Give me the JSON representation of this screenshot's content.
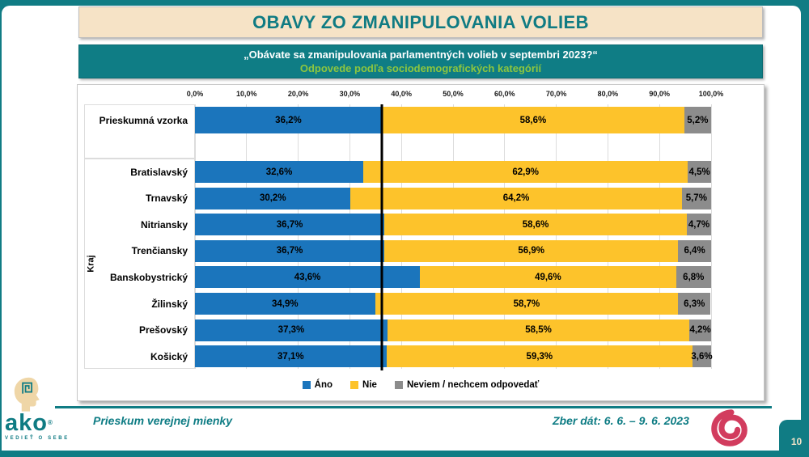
{
  "title": "OBAVY ZO ZMANIPULOVANIA VOLIEB",
  "subtitle": {
    "line1": "„Obávate sa zmanipulovania parlamentných volieb v septembri 2023?“",
    "line2": "Odpovede podľa sociodemografických kategórií"
  },
  "chart_data": {
    "type": "bar",
    "orientation": "horizontal",
    "stacked": true,
    "value_format": "percent-comma",
    "group_label": "Kraj",
    "categories": [
      "Prieskumná vzorka",
      "Bratislavský",
      "Trnavský",
      "Nitriansky",
      "Trenčiansky",
      "Banskobystrický",
      "Žilinský",
      "Prešovský",
      "Košický"
    ],
    "series": [
      {
        "name": "Áno",
        "color": "#1B75BC",
        "values": [
          36.2,
          32.6,
          30.2,
          36.7,
          36.7,
          43.6,
          34.9,
          37.3,
          37.1
        ]
      },
      {
        "name": "Nie",
        "color": "#FDC32B",
        "values": [
          58.6,
          62.9,
          64.2,
          58.6,
          56.9,
          49.6,
          58.7,
          58.5,
          59.3
        ]
      },
      {
        "name": "Neviem / nechcem odpovedať",
        "color": "#8C8C8C",
        "values": [
          5.2,
          4.5,
          5.7,
          4.7,
          6.4,
          6.8,
          6.3,
          4.2,
          3.6
        ]
      }
    ],
    "x_ticks": [
      "0,0%",
      "10,0%",
      "20,0%",
      "30,0%",
      "40,0%",
      "50,0%",
      "60,0%",
      "70,0%",
      "80,0%",
      "90,0%",
      "100,0%"
    ],
    "xlim": [
      0,
      100
    ],
    "grid": true,
    "reference_line": 36.2,
    "legend_position": "bottom"
  },
  "footer": {
    "left_text": "Prieskum verejnej mienky",
    "right_text": "Zber dát: 6. 6. – 9. 6. 2023",
    "logo_text": "ako",
    "logo_reg": "®",
    "logo_tagline": "VEDIEŤ O SEBE"
  },
  "page": {
    "number": "10"
  },
  "colors": {
    "teal": "#107C84",
    "title_bg": "#F6E3C6",
    "title_text": "#0F7B83",
    "subtitle_green": "#8DC63F",
    "bar_yes": "#1B75BC",
    "bar_no": "#FDC32B",
    "bar_dk": "#8C8C8C",
    "spiral": "#D23C5E",
    "head_beige": "#EFD6A7"
  }
}
